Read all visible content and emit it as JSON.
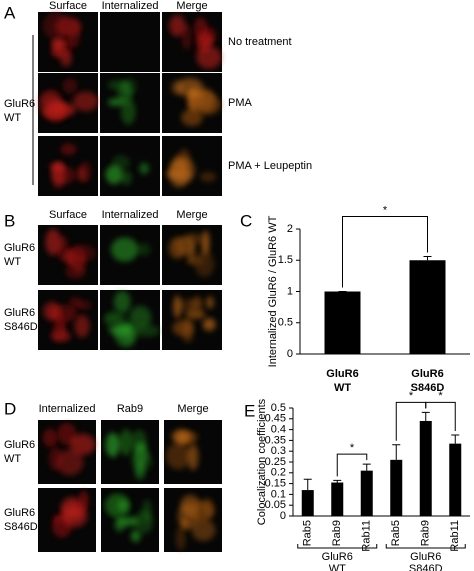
{
  "panels": {
    "A": {
      "letter": "A",
      "columns": [
        "Surface",
        "Internalized",
        "Merge"
      ],
      "row_labels": [
        "No treatment",
        "PMA",
        "PMA + Leupeptin"
      ],
      "group_label": [
        "GluR6",
        "WT"
      ]
    },
    "B": {
      "letter": "B",
      "columns": [
        "Surface",
        "Internalized",
        "Merge"
      ],
      "row_labels": [
        [
          "GluR6",
          "WT"
        ],
        [
          "GluR6",
          "S846D"
        ]
      ]
    },
    "D": {
      "letter": "D",
      "columns": [
        "Internalized",
        "Rab9",
        "Merge"
      ],
      "row_labels": [
        [
          "GluR6",
          "WT"
        ],
        [
          "GluR6",
          "S846D"
        ]
      ]
    }
  },
  "chart_data": [
    {
      "type": "bar",
      "panel_label": "C",
      "ylabel": "Internalized GluR6 / GluR6 WT",
      "categories": [
        [
          "GluR6",
          "WT"
        ],
        [
          "GluR6",
          "S846D"
        ]
      ],
      "values": [
        1,
        1.5
      ],
      "errors": [
        0,
        0.06
      ],
      "color": "#000000",
      "ylim": [
        0,
        2
      ],
      "yticks": [
        0,
        0.5,
        1,
        1.5,
        2
      ],
      "significance": [
        {
          "label": "*",
          "between": [
            0,
            1
          ]
        }
      ]
    },
    {
      "type": "bar",
      "panel_label": "E",
      "ylabel": "Colocalization coefficients",
      "categories": [
        "Rab5",
        "Rab9",
        "Rab11",
        "Rab5",
        "Rab9",
        "Rab11"
      ],
      "values": [
        0.12,
        0.155,
        0.21,
        0.26,
        0.44,
        0.335
      ],
      "errors": [
        0.05,
        0.01,
        0.03,
        0.07,
        0.04,
        0.04
      ],
      "color": "#000000",
      "ylim": [
        0,
        0.5
      ],
      "yticks": [
        0,
        0.05,
        0.1,
        0.15,
        0.2,
        0.25,
        0.3,
        0.35,
        0.4,
        0.45,
        0.5
      ],
      "groups": [
        {
          "label": [
            "GluR6",
            "WT"
          ],
          "span": [
            0,
            2
          ]
        },
        {
          "label": [
            "GluR6",
            "S846D"
          ],
          "span": [
            3,
            5
          ]
        }
      ],
      "significance": [
        {
          "label": "*",
          "between": [
            1,
            2
          ]
        },
        {
          "label": "*",
          "between": [
            3,
            4
          ]
        },
        {
          "label": "*",
          "between": [
            4,
            5
          ]
        }
      ]
    }
  ]
}
